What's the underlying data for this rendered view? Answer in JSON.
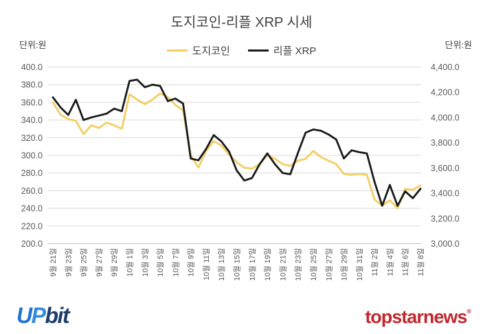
{
  "title": "도지코인-리플 XRP 시세",
  "unit_left": "단위:원",
  "unit_right": "단위:원",
  "legend": {
    "doge_label": "도지코인",
    "xrp_label": "리플 XRP"
  },
  "colors": {
    "doge_line": "#F3CE63",
    "xrp_line": "#1A1A1A",
    "gridline": "#D9D9D9",
    "axis_line": "#BFBFBF",
    "tick_text": "#595959",
    "title_text": "#404040",
    "upbit_u": "#1F74D0",
    "upbit_p": "#2F8AE0",
    "upbit_bit": "#1C3D6D",
    "topstar_red": "#C1272F"
  },
  "chart_data": {
    "type": "line",
    "title": "도지코인-리플 XRP 시세",
    "grid": true,
    "legend_position": "top",
    "x_label_every": 2,
    "x_labels": [
      "9월 21일",
      "9월 23일",
      "9월 25일",
      "9월 27일",
      "9월 29일",
      "10월 1일",
      "10월 3일",
      "10월 5일",
      "10월 7일",
      "10월 9일",
      "10월 11일",
      "10월 13일",
      "10월 15일",
      "10월 17일",
      "10월 19일",
      "10월 21일",
      "10월 23일",
      "10월 25일",
      "10월 27일",
      "10월 29일",
      "10월 31일",
      "11월 2일",
      "11월 4일",
      "11월 6일",
      "11월 8일"
    ],
    "left_axis": {
      "label": "단위:원",
      "min": 200,
      "max": 400,
      "step": 20,
      "ticks": [
        "400.0",
        "380.0",
        "360.0",
        "340.0",
        "320.0",
        "300.0",
        "280.0",
        "260.0",
        "240.0",
        "220.0",
        "200.0"
      ]
    },
    "right_axis": {
      "label": "단위:원",
      "min": 3000,
      "max": 4400,
      "step": 200,
      "ticks": [
        "4,400.0",
        "4,200.0",
        "4,000.0",
        "3,800.0",
        "3,600.0",
        "3,400.0",
        "3,200.0",
        "3,000.0"
      ]
    },
    "series": [
      {
        "name": "도지코인",
        "axis": "left",
        "color": "#F3CE63",
        "values": [
          360,
          346,
          341,
          339,
          324,
          334,
          331,
          337,
          334,
          330,
          369,
          363,
          358,
          363,
          370,
          366,
          357,
          351,
          300,
          286,
          305,
          316,
          311,
          301,
          292,
          286,
          285,
          290,
          300,
          296,
          290,
          288,
          294,
          296,
          305,
          298,
          294,
          290,
          279,
          278,
          279,
          278,
          250,
          243,
          249,
          240,
          262,
          261,
          266
        ]
      },
      {
        "name": "리플 XRP",
        "axis": "right",
        "color": "#1A1A1A",
        "values": [
          4160,
          4080,
          4020,
          4140,
          3980,
          4000,
          4015,
          4030,
          4070,
          4050,
          4290,
          4300,
          4240,
          4260,
          4250,
          4130,
          4150,
          4110,
          3675,
          3660,
          3750,
          3860,
          3810,
          3730,
          3580,
          3500,
          3520,
          3630,
          3715,
          3630,
          3560,
          3550,
          3720,
          3880,
          3905,
          3895,
          3865,
          3825,
          3675,
          3740,
          3725,
          3715,
          3490,
          3300,
          3465,
          3300,
          3415,
          3360,
          3435
        ]
      }
    ]
  },
  "footer": {
    "upbit_u": "U",
    "upbit_p": "P",
    "upbit_bit": "bit",
    "topstar_text": "topstarnews",
    "topstar_mark": "®"
  }
}
